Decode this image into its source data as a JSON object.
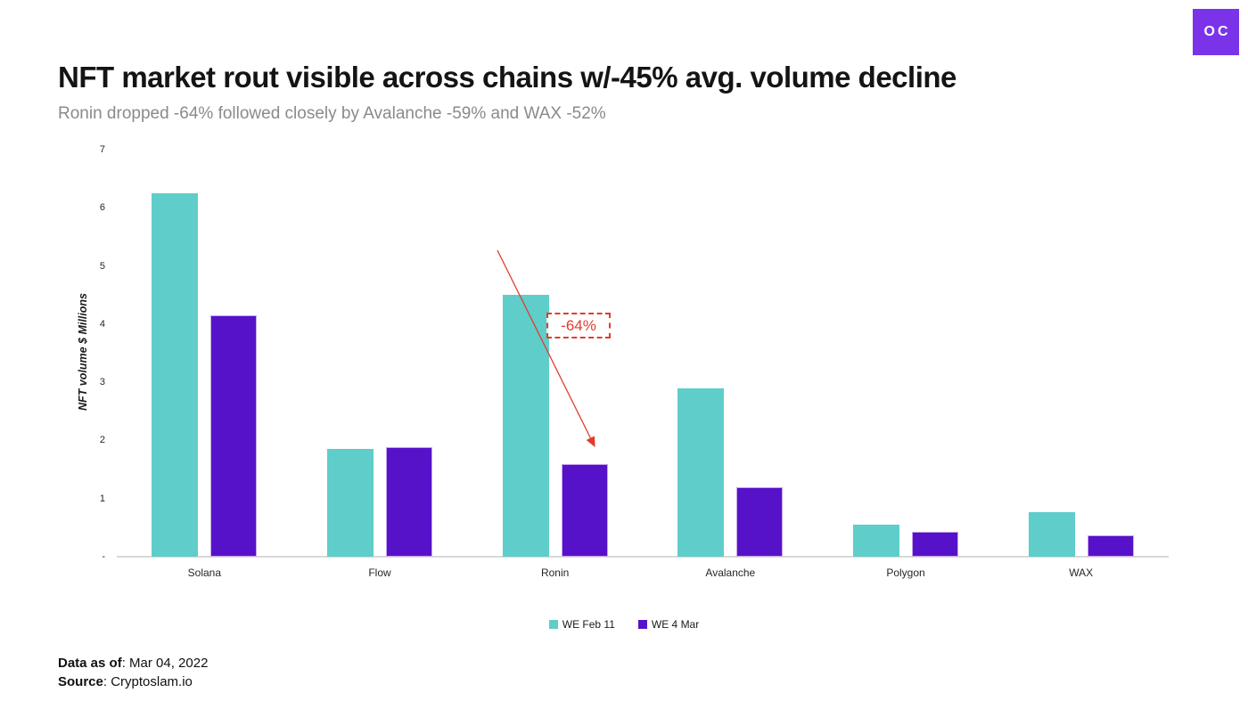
{
  "logo": {
    "text": "OC",
    "background": "#7b33ea"
  },
  "header": {
    "title": "NFT market rout visible across chains w/-45% avg. volume decline",
    "subtitle": "Ronin dropped -64% followed closely by Avalanche -59% and WAX -52%"
  },
  "chart_data": {
    "type": "bar",
    "title": "NFT market rout visible across chains w/-45% avg. volume decline",
    "categories": [
      "Solana",
      "Flow",
      "Ronin",
      "Avalanche",
      "Polygon",
      "WAX"
    ],
    "series": [
      {
        "name": "WE Feb 11",
        "color": "#5fcdc9",
        "values": [
          6.25,
          1.85,
          4.5,
          2.9,
          0.55,
          0.77
        ]
      },
      {
        "name": "WE 4 Mar",
        "color": "#5512c9",
        "border_color": "#c9a6ec",
        "values": [
          4.15,
          1.88,
          1.6,
          1.2,
          0.43,
          0.37
        ]
      }
    ],
    "xlabel": "",
    "ylabel": "NFT volume $ Millions",
    "ylim": [
      0,
      7
    ],
    "yticks": [
      0,
      1,
      2,
      3,
      4,
      5,
      6,
      7
    ],
    "ytick_labels": [
      "-",
      "1",
      "2",
      "3",
      "4",
      "5",
      "6",
      "7"
    ],
    "grid": false,
    "legend_position": "bottom",
    "annotation": {
      "text": "-64%",
      "color": "#e23b2e",
      "target_category": "Ronin",
      "target_series": "WE 4 Mar"
    }
  },
  "footer": {
    "data_as_of_label": "Data as of",
    "data_as_of_rest": ": Mar 04, 2022",
    "source_label": "Source",
    "source_rest": ": Cryptoslam.io"
  }
}
